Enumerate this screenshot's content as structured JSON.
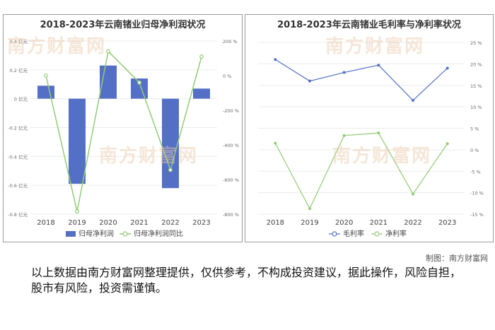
{
  "watermark": "南方财富网",
  "credit": "制图：南方财富网",
  "disclaimer": "以上数据由南方财富网整理提供，仅供参考，不构成投资建议，据此操作，风险自担，股市有风险，投资需谨慎。",
  "colors": {
    "bar": "#5470c6",
    "line_green": "#91cc75",
    "line_blue": "#5470c6"
  },
  "chart_data": [
    {
      "type": "bar",
      "title": "2018-2023年云南锗业归母净利润状况",
      "categories": [
        "2018",
        "2019",
        "2020",
        "2021",
        "2022",
        "2023"
      ],
      "y_left": {
        "ticks": [
          "0.4 亿元",
          "0.2 亿元",
          "0 亿元",
          "-0.2 亿元",
          "-0.4 亿元",
          "-0.6 亿元",
          "-0.8 亿元"
        ],
        "min": -0.8,
        "max": 0.4
      },
      "y_right": {
        "ticks": [
          "200 %",
          "0 %",
          "-200 %",
          "-400 %",
          "-600 %",
          "-800 %"
        ],
        "min": -800,
        "max": 200
      },
      "series": [
        {
          "name": "归母净利润",
          "kind": "bar",
          "axis": "left",
          "values": [
            0.09,
            -0.59,
            0.23,
            0.14,
            -0.62,
            0.07
          ]
        },
        {
          "name": "归母净利润同比",
          "kind": "line",
          "axis": "right",
          "values": [
            0,
            -785,
            140,
            -40,
            -545,
            110
          ]
        }
      ],
      "legend": "bottom"
    },
    {
      "type": "line",
      "title": "2018-2023年云南锗业毛利率与净利率状况",
      "categories": [
        "2018",
        "2019",
        "2020",
        "2021",
        "2022",
        "2023"
      ],
      "y_right": {
        "ticks": [
          "25 %",
          "20 %",
          "15 %",
          "10 %",
          "5 %",
          "0 %",
          "-5 %",
          "-10 %",
          "-15 %"
        ],
        "min": -15,
        "max": 25
      },
      "series": [
        {
          "name": "毛利率",
          "values": [
            21,
            16,
            18,
            19.7,
            11.5,
            19
          ]
        },
        {
          "name": "净利率",
          "values": [
            1.5,
            -13.7,
            3.3,
            3.9,
            -10.3,
            1.4
          ]
        }
      ],
      "legend": "bottom"
    }
  ]
}
